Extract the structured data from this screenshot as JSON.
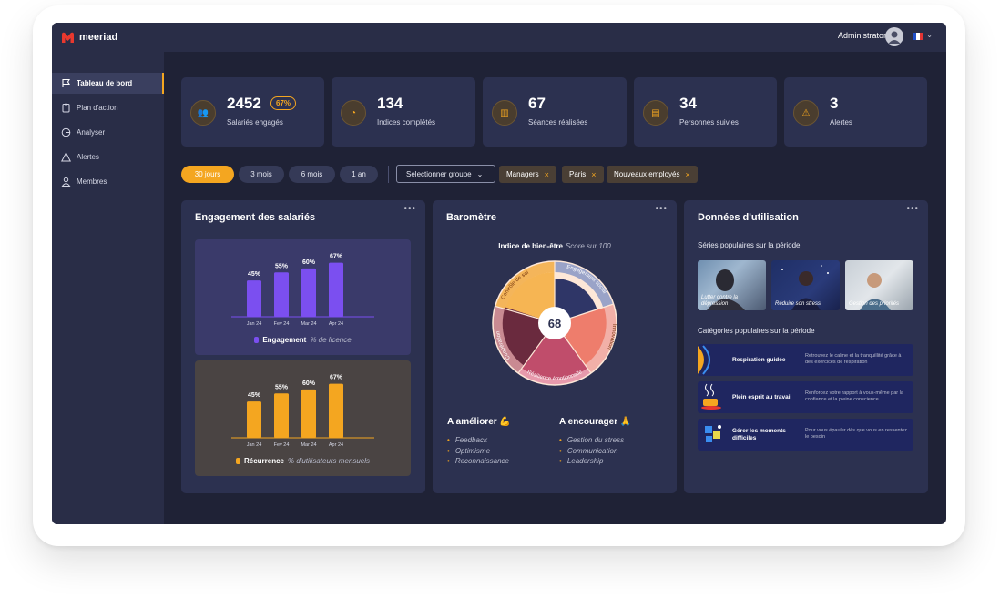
{
  "app": {
    "name": "meeriad"
  },
  "sidebar": {
    "items": [
      {
        "label": "Tableau de bord",
        "icon": "flag-icon",
        "active": true
      },
      {
        "label": "Plan d'action",
        "icon": "clipboard-icon",
        "active": false
      },
      {
        "label": "Analyser",
        "icon": "pie-chart-icon",
        "active": false
      },
      {
        "label": "Alertes",
        "icon": "warning-icon",
        "active": false
      },
      {
        "label": "Membres",
        "icon": "user-icon",
        "active": false
      }
    ]
  },
  "header": {
    "user_label": "Administrator",
    "language": "FR"
  },
  "kpis": [
    {
      "value": "2452",
      "badge": "67%",
      "label": "Salariés engagés",
      "icon": "people-icon"
    },
    {
      "value": "134",
      "label": "Indices complétés",
      "icon": "gauge-icon"
    },
    {
      "value": "67",
      "label": "Séances réalisées",
      "icon": "book-icon"
    },
    {
      "value": "34",
      "label": "Personnes suivies",
      "icon": "chat-icon"
    },
    {
      "value": "3",
      "label": "Alertes",
      "icon": "alert-icon"
    }
  ],
  "filters": {
    "periods": [
      "30 jours",
      "3 mois",
      "6 mois",
      "1 an"
    ],
    "active_period": "30 jours",
    "group_select": "Selectionner groupe",
    "chips": [
      "Managers",
      "Paris",
      "Nouveaux employés"
    ]
  },
  "engagement": {
    "title": "Engagement des salariés",
    "more": "•••",
    "legend_1": {
      "label": "Engagement",
      "sub": "% de licence"
    },
    "legend_2": {
      "label": "Récurrence",
      "sub": "% d'utilisateurs mensuels"
    }
  },
  "chart_data": [
    {
      "type": "bar",
      "categories": [
        "Jan 24",
        "Fev 24",
        "Mar 24",
        "Apr 24"
      ],
      "series": [
        {
          "name": "Engagement",
          "values": [
            45,
            55,
            60,
            67
          ]
        }
      ],
      "data_labels": [
        "45%",
        "55%",
        "60%",
        "67%"
      ],
      "color": "#7b4ff0"
    },
    {
      "type": "bar",
      "categories": [
        "Jan 24",
        "Fev 24",
        "Mar 24",
        "Apr 24"
      ],
      "series": [
        {
          "name": "Récurrence",
          "values": [
            45,
            55,
            60,
            67
          ]
        }
      ],
      "data_labels": [
        "45%",
        "55%",
        "60%",
        "67%"
      ],
      "color": "#f4a620"
    }
  ],
  "barometre": {
    "title": "Baromètre",
    "more": "•••",
    "subtitle": "Indice de bien-être",
    "subtitle_note": "Score sur 100",
    "score": "68",
    "segments": [
      "Contrôle de soi",
      "Engagement social",
      "Innovation",
      "Résilience émotionnelle",
      "Coopération"
    ],
    "improve_title": "A améliorer 💪",
    "improve": [
      "Feedback",
      "Optimisme",
      "Reconnaissance"
    ],
    "encourage_title": "A encourager 🙏",
    "encourage": [
      "Gestion du stress",
      "Communication",
      "Leadership"
    ]
  },
  "usage": {
    "title": "Données d'utilisation",
    "more": "•••",
    "series_heading": "Séries populaires sur la période",
    "series": [
      "Lutter contre la dépression",
      "Réduire son stress",
      "Gestion des priorités"
    ],
    "categories_heading": "Catégories populaires sur la période",
    "categories": [
      {
        "title": "Respiration guidée",
        "desc": "Retrouvez le calme et la tranquillité grâce à des exercices de respiration"
      },
      {
        "title": "Plein esprit au travail",
        "desc": "Renforcez votre rapport à vous-même par la confiance et la pleine conscience"
      },
      {
        "title": "Gérer les moments difficiles",
        "desc": "Pour vous épauler dès que vous en ressentez le besoin"
      }
    ]
  }
}
